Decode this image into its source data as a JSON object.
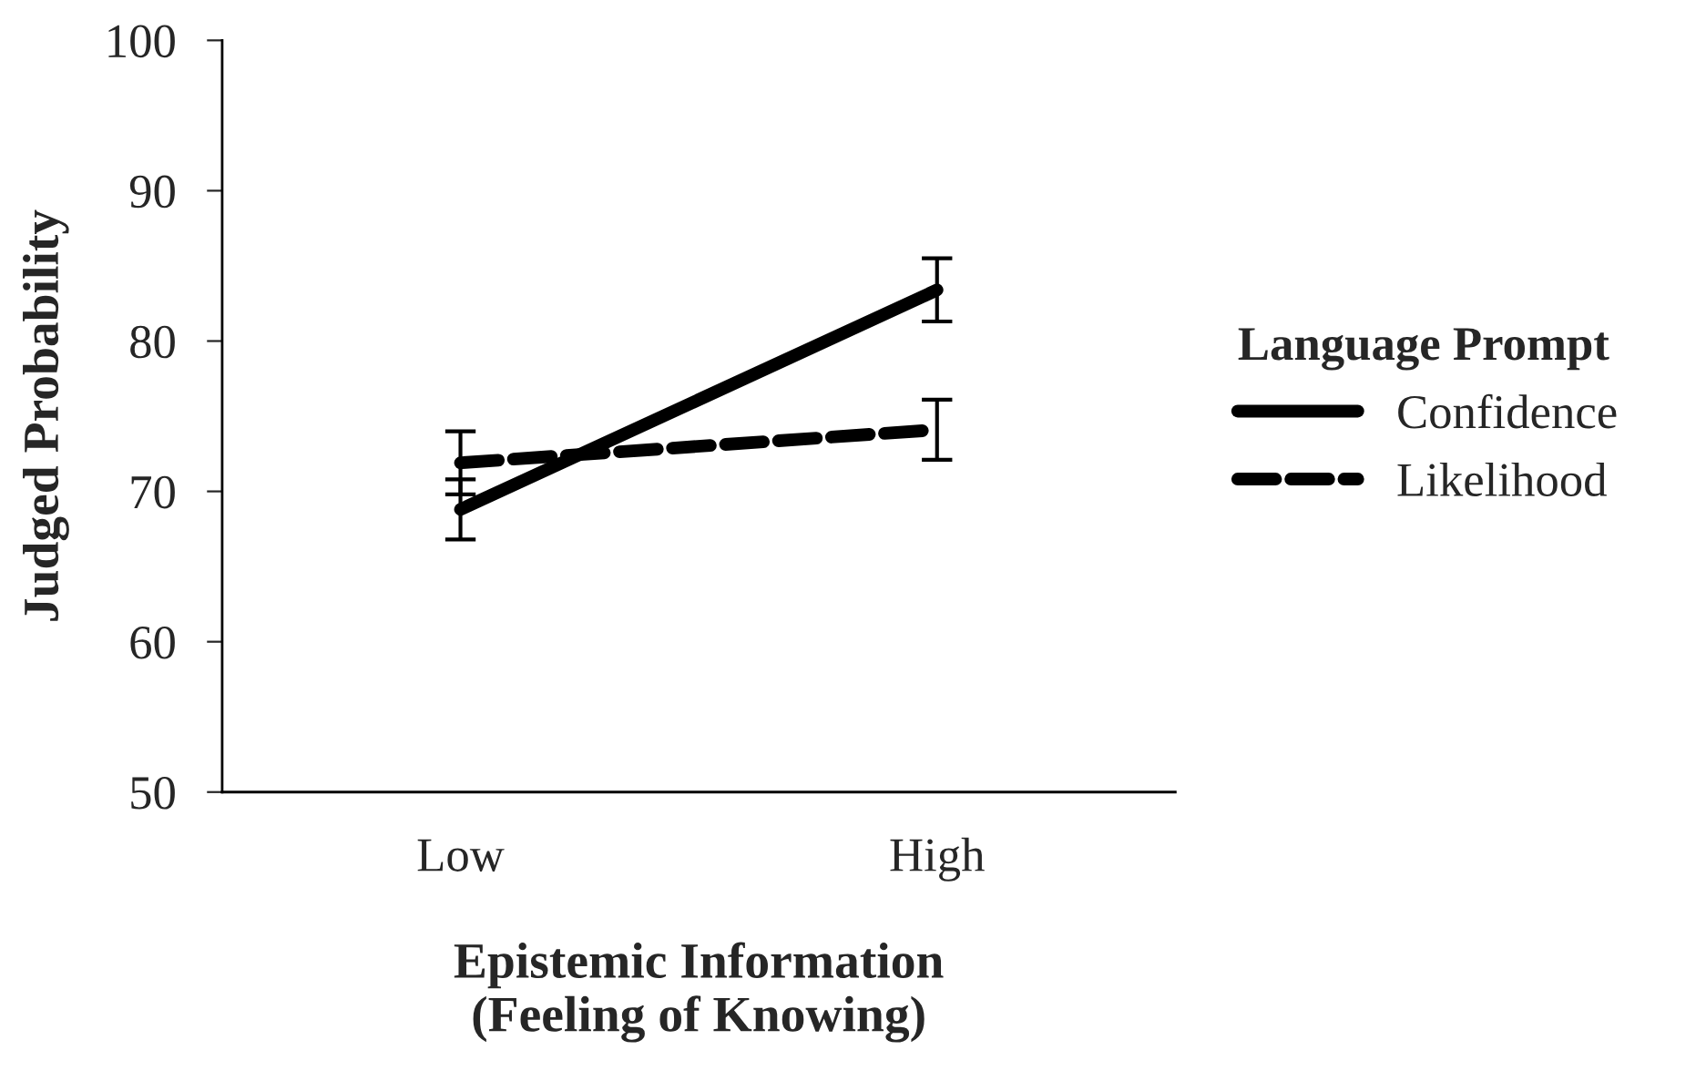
{
  "chart_data": {
    "type": "line",
    "xlabel": "Epistemic Information\n(Feeling of Knowing)",
    "ylabel": "Judged Probability",
    "legend_title": "Language Prompt",
    "categories": [
      "Low",
      "High"
    ],
    "series": [
      {
        "name": "Confidence",
        "color": "#000000",
        "values": [
          68.8,
          83.4
        ],
        "errors": [
          2.0,
          2.1
        ],
        "line_style": "solid"
      },
      {
        "name": "Likelihood",
        "color": "#000000",
        "values": [
          71.9,
          74.1
        ],
        "errors": [
          2.1,
          2.0
        ],
        "line_style": "dashed"
      }
    ],
    "ylim": [
      50,
      100
    ],
    "yticks": [
      50,
      60,
      70,
      80,
      90,
      100
    ],
    "grid": false,
    "legend": "right",
    "marker": "none"
  }
}
